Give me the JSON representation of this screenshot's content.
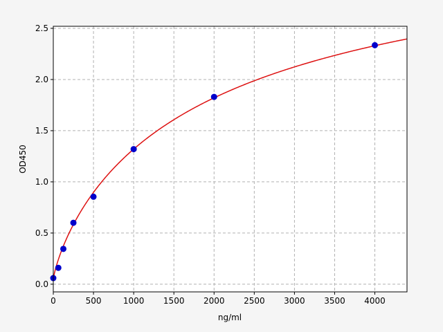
{
  "chart_data": {
    "type": "scatter",
    "title": "",
    "xlabel": "ng/ml",
    "ylabel": "OD450",
    "xlim": [
      0,
      4400
    ],
    "ylim": [
      -0.075,
      2.52
    ],
    "xticks": [
      0,
      500,
      1000,
      1500,
      2000,
      2500,
      3000,
      3500,
      4000
    ],
    "yticks": [
      0.0,
      0.5,
      1.0,
      1.5,
      2.0,
      2.5
    ],
    "ytick_labels": [
      "0.0",
      "0.5",
      "1.0",
      "1.5",
      "2.0",
      "2.5"
    ],
    "grid": true,
    "points": {
      "x": [
        0,
        62.5,
        125,
        250,
        500,
        1000,
        2000,
        4000
      ],
      "y": [
        0.06,
        0.16,
        0.345,
        0.6,
        0.855,
        1.32,
        1.83,
        2.335
      ],
      "color": "#0000cc"
    },
    "fit_curve": {
      "type": "line",
      "color": "#dd1111"
    }
  }
}
